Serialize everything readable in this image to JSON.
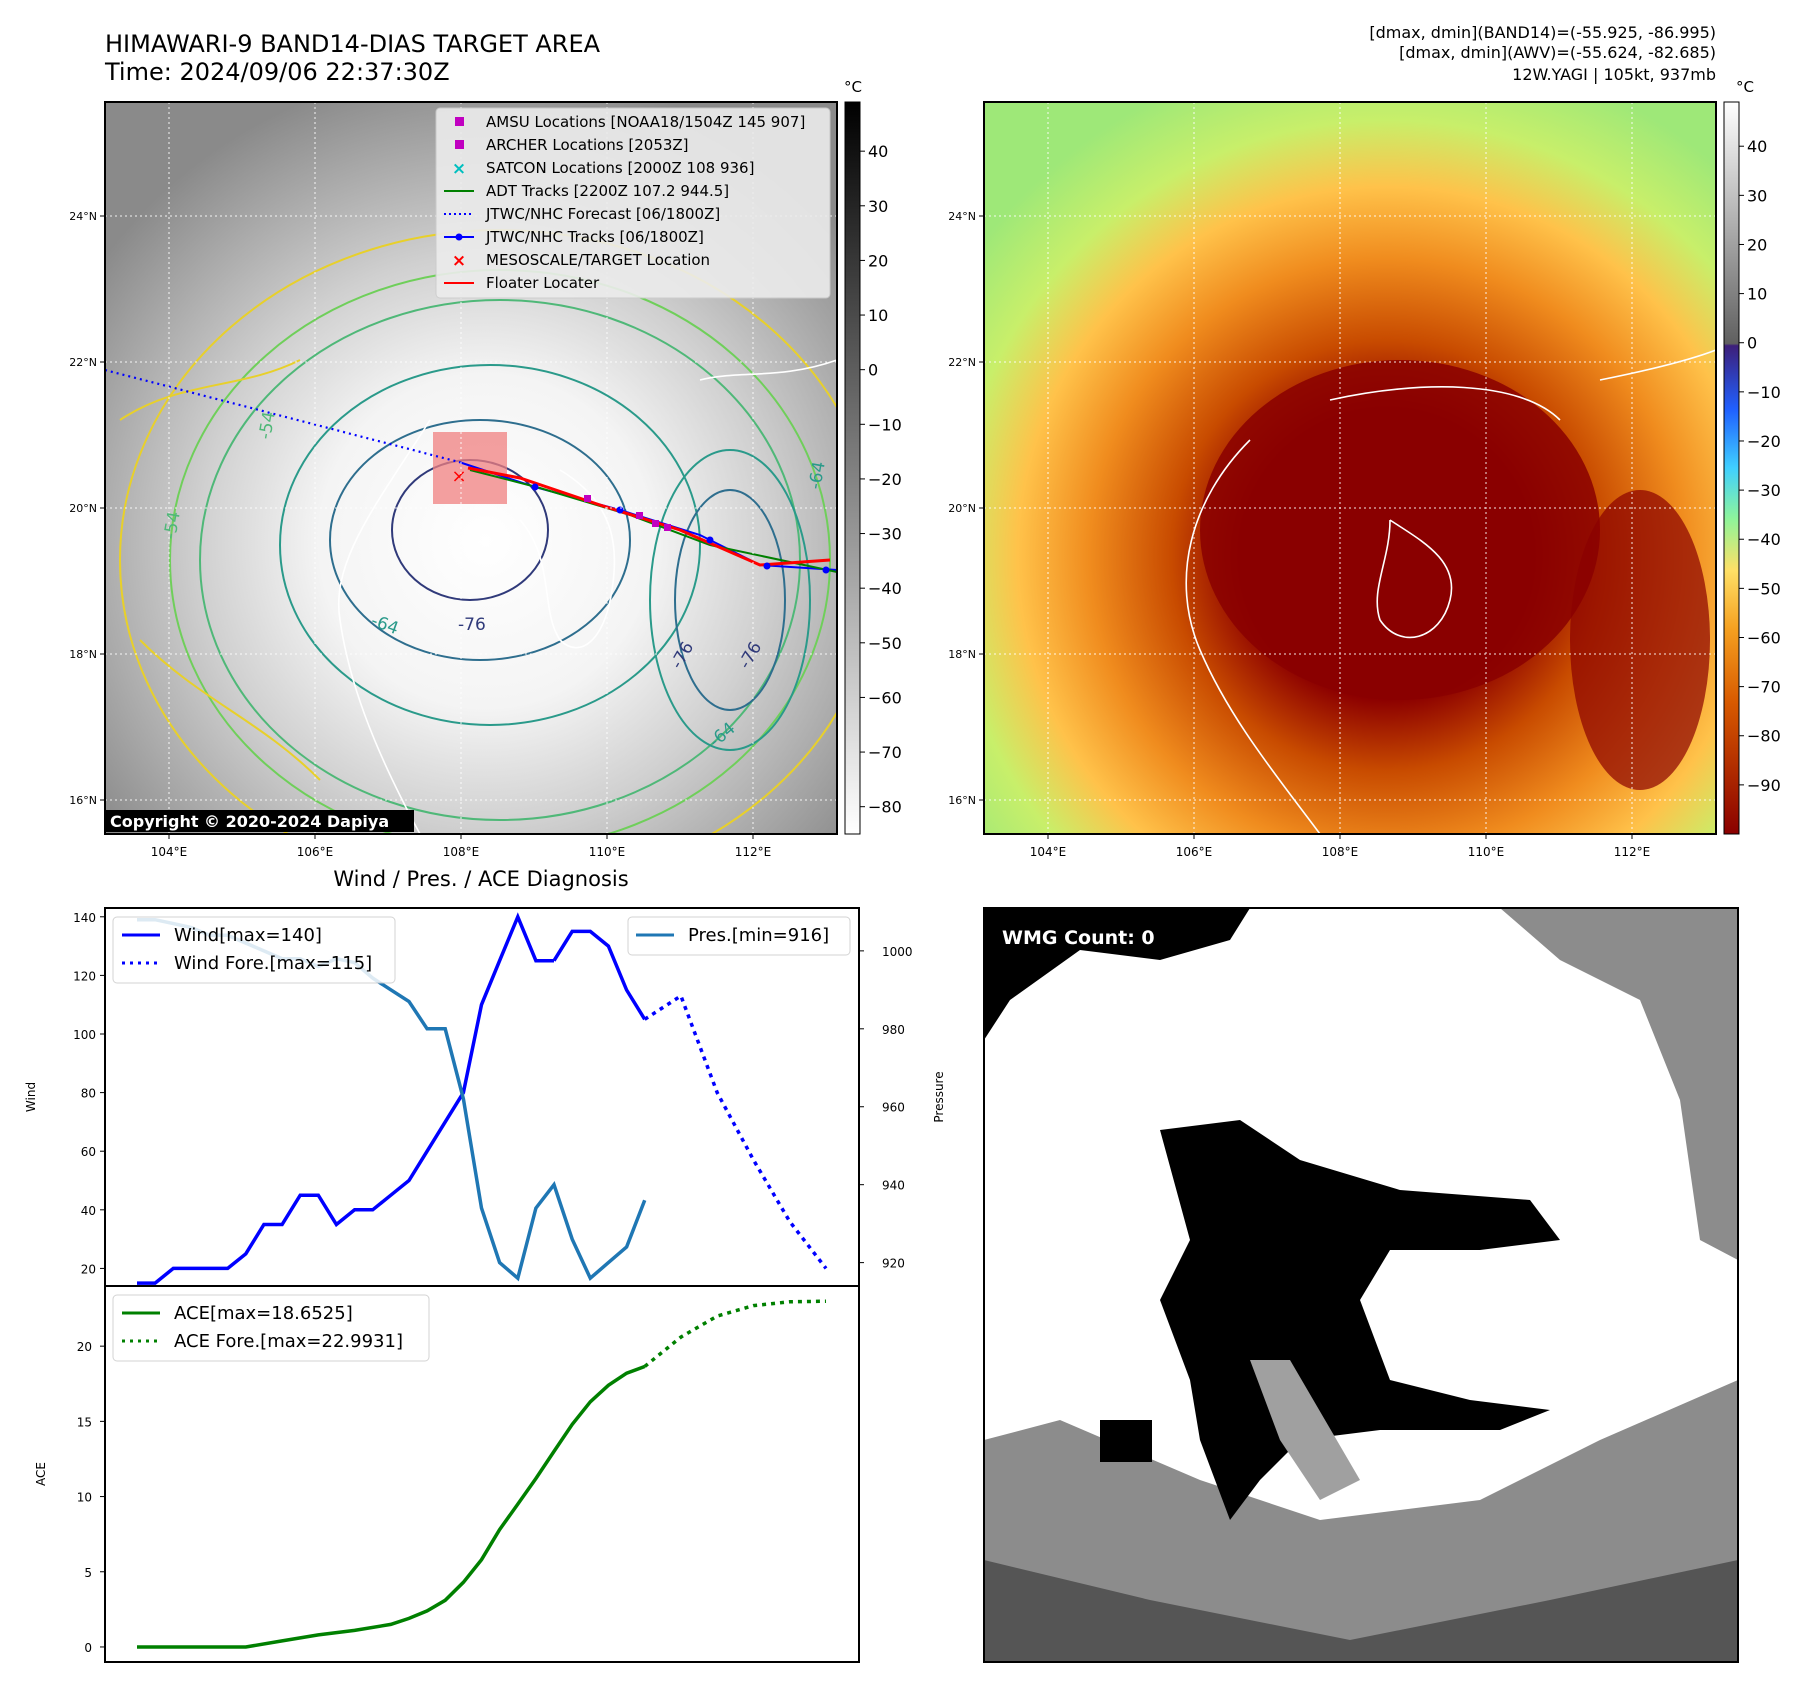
{
  "header": {
    "title_line1": "HIMAWARI-9 BAND14-DIAS TARGET AREA",
    "title_line2": "Time: 2024/09/06 22:37:30Z",
    "right_line1": "[dmax, dmin](BAND14)=(-55.925, -86.995)",
    "right_line2": "[dmax, dmin](AWV)=(-55.624, -82.685)",
    "right_line3": "12W.YAGI | 105kt, 937mb"
  },
  "copyright": "Copyright © 2020-2024 Dapiya",
  "map": {
    "lon_ticks": [
      "104°E",
      "106°E",
      "108°E",
      "110°E",
      "112°E"
    ],
    "lat_ticks": [
      "24°N",
      "22°N",
      "20°N",
      "18°N",
      "16°N"
    ],
    "legend": [
      {
        "label": "AMSU Locations [NOAA18/1504Z 145 907]",
        "color": "#c000c0",
        "marker": "square"
      },
      {
        "label": "ARCHER Locations [2053Z]",
        "color": "#c000c0",
        "marker": "square"
      },
      {
        "label": "SATCON Locations [2000Z 108 936]",
        "color": "#00bfbf",
        "marker": "x"
      },
      {
        "label": "ADT Tracks [2200Z 107.2 944.5]",
        "color": "#008000",
        "marker": "line"
      },
      {
        "label": "JTWC/NHC Forecast [06/1800Z]",
        "color": "#0000ff",
        "marker": "dotted"
      },
      {
        "label": "JTWC/NHC Tracks [06/1800Z]",
        "color": "#0000ff",
        "marker": "line-dot"
      },
      {
        "label": "MESOSCALE/TARGET Location",
        "color": "#ff0000",
        "marker": "x"
      },
      {
        "label": "Floater Locater",
        "color": "#ff0000",
        "marker": "line"
      }
    ],
    "contour_labels": [
      "-76",
      "-76",
      "-76",
      "-64",
      "-64",
      "-64",
      "-54",
      "-54"
    ]
  },
  "colorbar_left": {
    "unit": "°C",
    "ticks": [
      "40",
      "30",
      "20",
      "10",
      "0",
      "−10",
      "−20",
      "−30",
      "−40",
      "−50",
      "−60",
      "−70",
      "−80"
    ]
  },
  "colorbar_right": {
    "unit": "°C",
    "ticks": [
      "40",
      "30",
      "20",
      "10",
      "0",
      "−10",
      "−20",
      "−30",
      "−40",
      "−50",
      "−60",
      "−70",
      "−80",
      "−90"
    ]
  },
  "wmg": {
    "label": "WMG Count: 0"
  },
  "chart_data": [
    {
      "type": "line",
      "title": "Wind / Pres. / ACE Diagnosis",
      "ylabel": "Wind",
      "y2label": "Pressure",
      "ylim": [
        14,
        143
      ],
      "y2lim": [
        914,
        1011
      ],
      "yticks": [
        20,
        40,
        60,
        80,
        100,
        120,
        140
      ],
      "y2ticks": [
        920,
        940,
        960,
        980,
        1000
      ],
      "series": [
        {
          "name": "Wind[max=140]",
          "color": "#0000ff",
          "style": "solid",
          "axis": "left",
          "x": [
            0,
            1,
            2,
            3,
            4,
            5,
            6,
            7,
            8,
            9,
            10,
            11,
            12,
            13,
            14,
            15,
            16,
            17,
            18,
            19,
            20,
            21,
            22,
            23
          ],
          "values": [
            15,
            15,
            20,
            20,
            20,
            20,
            25,
            35,
            35,
            45,
            45,
            35,
            40,
            40,
            45,
            50,
            60,
            70,
            80,
            110,
            125,
            140,
            125,
            125
          ]
        },
        {
          "name": "Wind[max=140]",
          "color": "#0000ff",
          "style": "solid",
          "axis": "left",
          "x": [
            23,
            24,
            25,
            26,
            27,
            28
          ],
          "values": [
            125,
            135,
            135,
            130,
            115,
            105
          ]
        },
        {
          "name": "Wind Fore.[max=115]",
          "color": "#0000ff",
          "style": "dotted",
          "axis": "left",
          "x": [
            28,
            30,
            32,
            34,
            36,
            38
          ],
          "values": [
            105,
            113,
            80,
            57,
            36,
            20
          ]
        },
        {
          "name": "Pres.[min=916]",
          "color": "#1f77b4",
          "style": "solid",
          "axis": "right",
          "x": [
            0,
            1,
            2,
            3,
            4,
            5,
            6,
            7,
            8,
            9,
            10,
            11,
            12,
            13,
            14,
            15,
            16,
            17,
            18,
            19,
            20,
            21,
            22,
            23,
            24,
            25,
            26,
            27,
            28
          ],
          "values": [
            1008,
            1008,
            1007,
            1006,
            1004,
            1004,
            1002,
            1000,
            998,
            998,
            996,
            998,
            997,
            993,
            990,
            987,
            980,
            980,
            962,
            934,
            920,
            916,
            934,
            940,
            926,
            916,
            920,
            924,
            936
          ]
        }
      ]
    },
    {
      "type": "line",
      "ylabel": "ACE",
      "ylim": [
        -1,
        24
      ],
      "yticks": [
        0,
        5,
        10,
        15,
        20
      ],
      "series": [
        {
          "name": "ACE[max=18.6525]",
          "color": "#008000",
          "style": "solid",
          "x": [
            0,
            2,
            4,
            6,
            8,
            10,
            12,
            14,
            15,
            16,
            17,
            18,
            19,
            20,
            21,
            22,
            23,
            24,
            25,
            26,
            27,
            28
          ],
          "values": [
            0,
            0,
            0,
            0,
            0.4,
            0.8,
            1.1,
            1.5,
            1.9,
            2.4,
            3.1,
            4.3,
            5.8,
            7.8,
            9.5,
            11.2,
            13,
            14.8,
            16.3,
            17.4,
            18.2,
            18.65
          ]
        },
        {
          "name": "ACE Fore.[max=22.9931]",
          "color": "#008000",
          "style": "dotted",
          "x": [
            28,
            30,
            32,
            34,
            36,
            38
          ],
          "values": [
            18.65,
            20.6,
            22,
            22.7,
            22.95,
            22.99
          ]
        }
      ]
    }
  ]
}
